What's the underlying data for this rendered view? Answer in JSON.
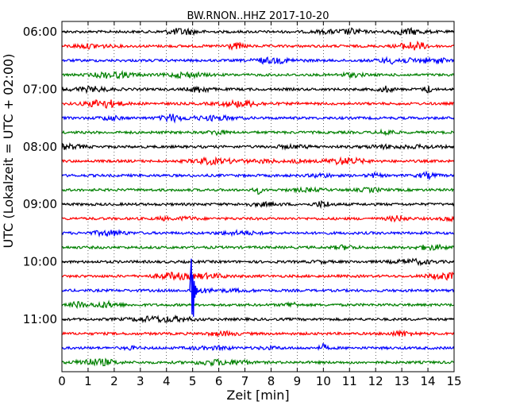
{
  "chart_data": {
    "type": "line",
    "title": "BW.RNON..HHZ 2017-10-20",
    "xlabel": "Zeit  [min]",
    "ylabel": "UTC (Lokalzeit = UTC + 02:00)",
    "xlim": [
      0,
      15
    ],
    "x_ticks": [
      "0",
      "1",
      "2",
      "3",
      "4",
      "5",
      "6",
      "7",
      "8",
      "9",
      "10",
      "11",
      "12",
      "13",
      "14",
      "15"
    ],
    "y_ticks": [
      "06:00",
      "07:00",
      "08:00",
      "09:00",
      "10:00",
      "11:00"
    ],
    "trace_start_times": [
      "06:00",
      "06:15",
      "06:30",
      "06:45",
      "07:00",
      "07:15",
      "07:30",
      "07:45",
      "08:00",
      "08:15",
      "08:30",
      "08:45",
      "09:00",
      "09:15",
      "09:30",
      "09:45",
      "10:00",
      "10:15",
      "10:30",
      "10:45",
      "11:00",
      "11:15",
      "11:30",
      "11:45"
    ],
    "trace_color_cycle": [
      "#000000",
      "#ff0000",
      "#0000ff",
      "#008000"
    ],
    "grid": "vertical dotted at each minute",
    "events": [
      {
        "trace_start": "10:30",
        "x": 4.95,
        "note": "large spike"
      },
      {
        "trace_start": "07:00",
        "x": 14.0
      },
      {
        "trace_start": "06:30",
        "x": 14.5
      },
      {
        "trace_start": "08:45",
        "x": 7.5
      },
      {
        "trace_start": "11:30",
        "x": 10.0
      }
    ]
  }
}
